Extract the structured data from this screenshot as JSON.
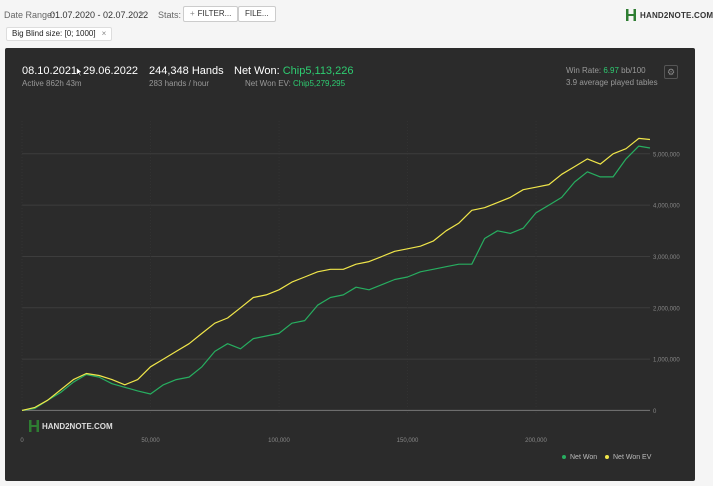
{
  "topbar": {
    "date_range_label": "Date Range:",
    "date_range_value": "01.07.2020 - 02.07.2022",
    "stats_label": "Stats:",
    "filter_button": "FILTER...",
    "file_button": "FILE...",
    "logo_text": "HAND2NOTE.COM",
    "brand_color": "#2e7d32"
  },
  "filter_chip": {
    "label": "Big Blind size: [0; 1000]",
    "remove": "×"
  },
  "summary": {
    "date_from": "08.10.2021",
    "date_to": "29.06.2022",
    "active": "Active 862h 43m",
    "hands": "244,348 Hands",
    "hands_rate": "283 hands / hour",
    "net_won_label": "Net Won: ",
    "net_won_value": "Chip5,113,226",
    "ev_label": "Net Won  EV: ",
    "ev_value": "Chip5,279,295",
    "win_rate_label": "Win Rate: ",
    "win_rate_value": "6.97",
    "win_rate_unit": " bb/100",
    "tables": "3.9 average played tables"
  },
  "watermark": "HAND2NOTE.COM",
  "chart_data": {
    "type": "line",
    "x_ticks": [
      "0",
      "50,000",
      "100,000",
      "150,000",
      "200,000"
    ],
    "y_ticks": [
      "0",
      "1,000,000",
      "2,000,000",
      "3,000,000",
      "4,000,000",
      "5,000,000"
    ],
    "xlim": [
      0,
      244348
    ],
    "ylim": [
      -50000,
      5600000
    ],
    "legend_position": "bottom-right",
    "series": [
      {
        "name": "Net Won",
        "color": "#27ae60",
        "x": [
          0,
          5000,
          10000,
          15000,
          20000,
          25000,
          30000,
          35000,
          40000,
          45000,
          50000,
          55000,
          60000,
          65000,
          70000,
          75000,
          80000,
          85000,
          90000,
          95000,
          100000,
          105000,
          110000,
          115000,
          120000,
          125000,
          130000,
          135000,
          140000,
          145000,
          150000,
          155000,
          160000,
          165000,
          170000,
          175000,
          180000,
          185000,
          190000,
          195000,
          200000,
          205000,
          210000,
          215000,
          220000,
          225000,
          230000,
          235000,
          240000,
          244348
        ],
        "y": [
          0,
          40000,
          200000,
          350000,
          550000,
          700000,
          650000,
          520000,
          450000,
          380000,
          320000,
          500000,
          600000,
          650000,
          850000,
          1150000,
          1300000,
          1200000,
          1400000,
          1450000,
          1500000,
          1700000,
          1750000,
          2050000,
          2200000,
          2250000,
          2400000,
          2350000,
          2450000,
          2550000,
          2600000,
          2700000,
          2750000,
          2800000,
          2850000,
          2850000,
          3350000,
          3500000,
          3450000,
          3550000,
          3850000,
          4000000,
          4150000,
          4450000,
          4650000,
          4550000,
          4550000,
          4900000,
          5150000,
          5113226
        ]
      },
      {
        "name": "Net Won  EV",
        "color": "#f0e64a",
        "x": [
          0,
          5000,
          10000,
          15000,
          20000,
          25000,
          30000,
          35000,
          40000,
          45000,
          50000,
          55000,
          60000,
          65000,
          70000,
          75000,
          80000,
          85000,
          90000,
          95000,
          100000,
          105000,
          110000,
          115000,
          120000,
          125000,
          130000,
          135000,
          140000,
          145000,
          150000,
          155000,
          160000,
          165000,
          170000,
          175000,
          180000,
          185000,
          190000,
          195000,
          200000,
          205000,
          210000,
          215000,
          220000,
          225000,
          230000,
          235000,
          240000,
          244348
        ],
        "y": [
          0,
          60000,
          200000,
          400000,
          600000,
          720000,
          680000,
          600000,
          500000,
          600000,
          850000,
          1000000,
          1150000,
          1300000,
          1500000,
          1700000,
          1800000,
          2000000,
          2200000,
          2250000,
          2350000,
          2500000,
          2600000,
          2700000,
          2750000,
          2750000,
          2850000,
          2900000,
          3000000,
          3100000,
          3150000,
          3200000,
          3300000,
          3500000,
          3650000,
          3900000,
          3950000,
          4050000,
          4150000,
          4300000,
          4350000,
          4400000,
          4600000,
          4750000,
          4900000,
          4800000,
          5000000,
          5100000,
          5300000,
          5279295
        ]
      }
    ]
  }
}
